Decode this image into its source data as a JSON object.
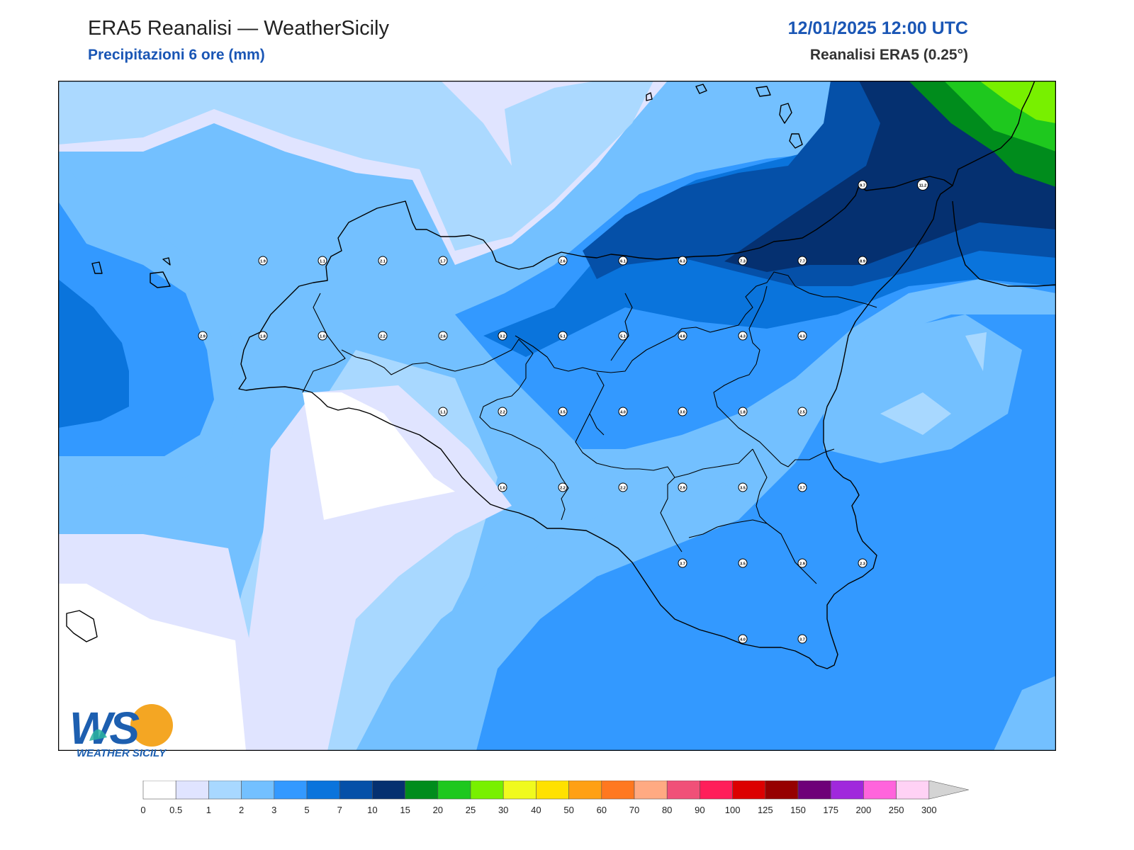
{
  "header": {
    "title": "ERA5 Reanalisi — WeatherSicily",
    "subtitle": "Precipitazioni 6 ore (mm)",
    "datetime": "12/01/2025 12:00 UTC",
    "source": "Reanalisi ERA5 (0.25°)"
  },
  "logo": {
    "text": "WEATHER SICILY",
    "letters": "WS"
  },
  "legend": {
    "levels": [
      "0",
      "0.5",
      "1",
      "2",
      "3",
      "5",
      "7",
      "10",
      "15",
      "20",
      "25",
      "30",
      "40",
      "50",
      "60",
      "70",
      "80",
      "90",
      "100",
      "125",
      "150",
      "175",
      "200",
      "250",
      "300"
    ],
    "colors": [
      "#ffffff",
      "#e0e4ff",
      "#a8d8ff",
      "#73c0ff",
      "#3399ff",
      "#0a74dc",
      "#0550a8",
      "#053070",
      "#008c1c",
      "#1ec81e",
      "#78f000",
      "#f0fa1e",
      "#ffe100",
      "#ffa014",
      "#ff7820",
      "#ffaa82",
      "#f05078",
      "#ff1e5a",
      "#dc0000",
      "#960000",
      "#6e0078",
      "#a028dc",
      "#ff64dc",
      "#ffd2f5"
    ],
    "overflow_color": "#d4d4d4"
  },
  "chart_data": {
    "type": "map",
    "variable": "Precipitazioni 6 ore (mm)",
    "station_values": [
      {
        "id": "s1",
        "v": "1.9"
      },
      {
        "id": "s2",
        "v": "1.1"
      },
      {
        "id": "s3",
        "v": "2.1"
      },
      {
        "id": "s4",
        "v": "1.7"
      },
      {
        "id": "s5",
        "v": "2.6"
      },
      {
        "id": "s6",
        "v": "6.1"
      },
      {
        "id": "s7",
        "v": "6.3"
      },
      {
        "id": "s8",
        "v": "7.3"
      },
      {
        "id": "s9",
        "v": "7.7"
      },
      {
        "id": "s10",
        "v": "8.9"
      },
      {
        "id": "s11",
        "v": "9.7"
      },
      {
        "id": "s12",
        "v": "11.2"
      },
      {
        "id": "s13",
        "v": "2.9"
      },
      {
        "id": "s14",
        "v": "1.8"
      },
      {
        "id": "s15",
        "v": "1.0"
      },
      {
        "id": "s16",
        "v": "2.2"
      },
      {
        "id": "s17",
        "v": "2.6"
      },
      {
        "id": "s18",
        "v": "3.2"
      },
      {
        "id": "s19",
        "v": "5.1"
      },
      {
        "id": "s20",
        "v": "5.1"
      },
      {
        "id": "s21",
        "v": "4.8"
      },
      {
        "id": "s22",
        "v": "4.3"
      },
      {
        "id": "s23",
        "v": "4.3"
      },
      {
        "id": "s24",
        "v": "1.1"
      },
      {
        "id": "s25",
        "v": "2.2"
      },
      {
        "id": "s26",
        "v": "3.5"
      },
      {
        "id": "s27",
        "v": "4.0"
      },
      {
        "id": "s28",
        "v": "3.0"
      },
      {
        "id": "s29",
        "v": "1.8"
      },
      {
        "id": "s30",
        "v": "2.5"
      },
      {
        "id": "s31",
        "v": "1.0"
      },
      {
        "id": "s32",
        "v": "2.2"
      },
      {
        "id": "s33",
        "v": "2.2"
      },
      {
        "id": "s34",
        "v": "2.9"
      },
      {
        "id": "s35",
        "v": "3.5"
      },
      {
        "id": "s36",
        "v": "3.7"
      },
      {
        "id": "s37",
        "v": "3.7"
      },
      {
        "id": "s38",
        "v": "3.5"
      },
      {
        "id": "s39",
        "v": "2.9"
      },
      {
        "id": "s40",
        "v": "2.3"
      },
      {
        "id": "s41",
        "v": "4.0"
      },
      {
        "id": "s42",
        "v": "3.7"
      }
    ]
  }
}
